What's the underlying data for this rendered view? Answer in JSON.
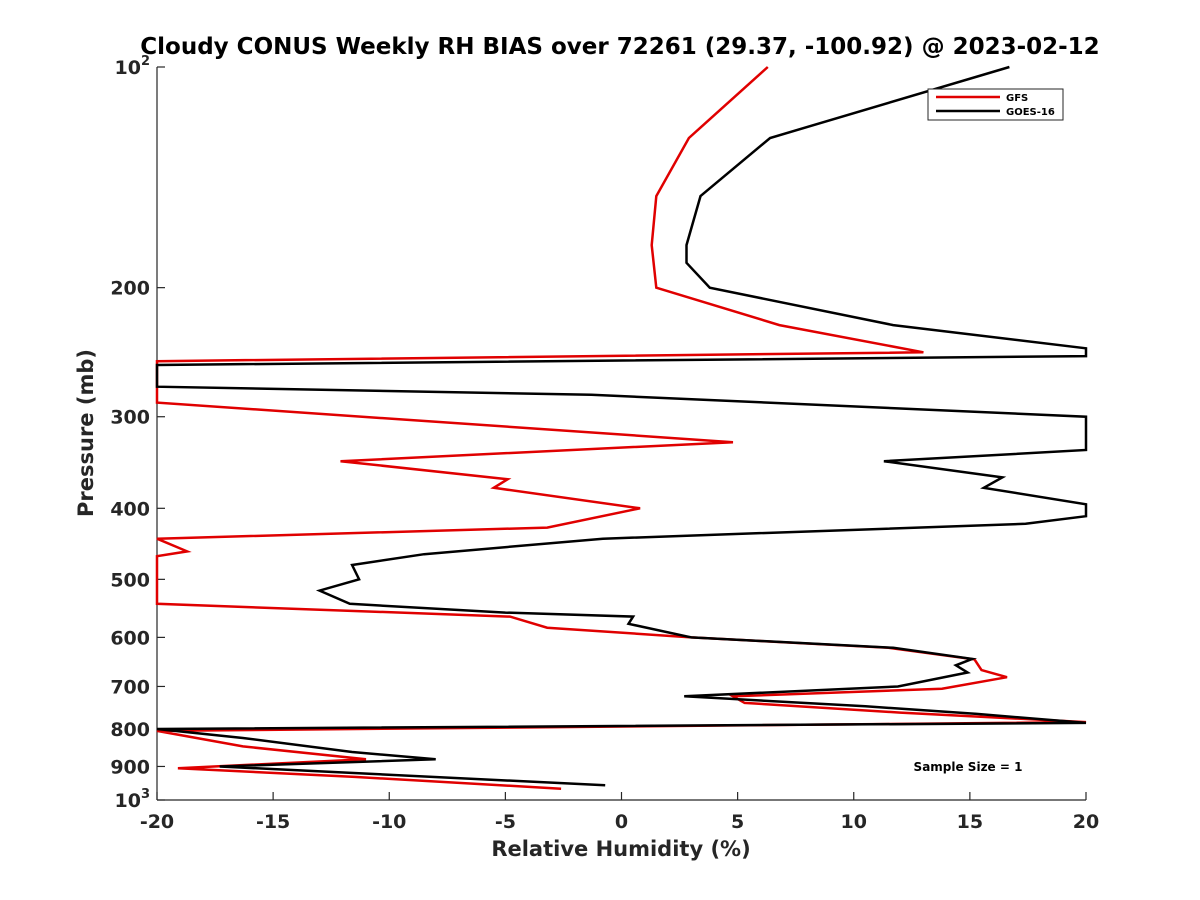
{
  "chart_data": {
    "type": "line",
    "title": "Cloudy CONUS Weekly RH BIAS over 72261 (29.37, -100.92) @ 2023-02-12",
    "xlabel": "Relative Humidity (%)",
    "ylabel": "Pressure (mb)",
    "xlim": [
      -20,
      20
    ],
    "ylim": [
      100,
      1000
    ],
    "y_scale": "log",
    "y_reversed": true,
    "x_ticks": [
      "-20",
      "-15",
      "-10",
      "-5",
      "0",
      "5",
      "10",
      "15",
      "20"
    ],
    "x_tick_values": [
      -20,
      -15,
      -10,
      -5,
      0,
      5,
      10,
      15,
      20
    ],
    "y_ticks": [
      {
        "value": 100,
        "base": "10",
        "exp": "2"
      },
      {
        "value": 200,
        "label": "200"
      },
      {
        "value": 300,
        "label": "300"
      },
      {
        "value": 400,
        "label": "400"
      },
      {
        "value": 500,
        "label": "500"
      },
      {
        "value": 600,
        "label": "600"
      },
      {
        "value": 700,
        "label": "700"
      },
      {
        "value": 800,
        "label": "800"
      },
      {
        "value": 900,
        "label": "900"
      },
      {
        "value": 1000,
        "base": "10",
        "exp": "3"
      }
    ],
    "grid": false,
    "legend_position": "top-right",
    "annotation": "Sample Size = 1",
    "series": [
      {
        "name": "GFS",
        "color": "#e00000",
        "points": [
          [
            6.3,
            100
          ],
          [
            2.9,
            125
          ],
          [
            1.5,
            150
          ],
          [
            1.3,
            175
          ],
          [
            1.5,
            200
          ],
          [
            6.8,
            225
          ],
          [
            13,
            245
          ],
          [
            -20,
            252
          ],
          [
            -20,
            287
          ],
          [
            4.8,
            325
          ],
          [
            -12.1,
            345
          ],
          [
            -4.9,
            365
          ],
          [
            -5.5,
            375
          ],
          [
            0.8,
            400
          ],
          [
            -3.2,
            425
          ],
          [
            -20,
            440
          ],
          [
            -18.7,
            458
          ],
          [
            -20,
            465
          ],
          [
            -20,
            540
          ],
          [
            -4.8,
            562
          ],
          [
            -3.2,
            582
          ],
          [
            3,
            600
          ],
          [
            11.5,
            620
          ],
          [
            15.2,
            643
          ],
          [
            15.5,
            665
          ],
          [
            16.6,
            680
          ],
          [
            13.8,
            705
          ],
          [
            4.8,
            722
          ],
          [
            5.3,
            737
          ],
          [
            12,
            760
          ],
          [
            20,
            783
          ],
          [
            -20,
            805
          ],
          [
            -16.3,
            845
          ],
          [
            -11,
            880
          ],
          [
            -19.1,
            905
          ],
          [
            -11.5,
            930
          ],
          [
            -2.6,
            965
          ]
        ]
      },
      {
        "name": "GOES-16",
        "color": "#000000",
        "points": [
          [
            16.7,
            100
          ],
          [
            6.4,
            125
          ],
          [
            3.4,
            150
          ],
          [
            2.8,
            175
          ],
          [
            2.8,
            185
          ],
          [
            3.8,
            200
          ],
          [
            11.7,
            225
          ],
          [
            20,
            242
          ],
          [
            20,
            248
          ],
          [
            -20,
            255
          ],
          [
            -20,
            273
          ],
          [
            -1.3,
            280
          ],
          [
            20,
            300
          ],
          [
            20,
            333
          ],
          [
            11.3,
            345
          ],
          [
            16.4,
            363
          ],
          [
            15.6,
            375
          ],
          [
            20,
            395
          ],
          [
            20,
            410
          ],
          [
            17.4,
            420
          ],
          [
            -0.8,
            440
          ],
          [
            -8.5,
            462
          ],
          [
            -11.6,
            478
          ],
          [
            -11.3,
            500
          ],
          [
            -13,
            518
          ],
          [
            -11.7,
            540
          ],
          [
            -5,
            555
          ],
          [
            0.5,
            562
          ],
          [
            0.3,
            575
          ],
          [
            3,
            600
          ],
          [
            11.7,
            620
          ],
          [
            15.1,
            642
          ],
          [
            14.4,
            655
          ],
          [
            14.9,
            670
          ],
          [
            11.9,
            700
          ],
          [
            2.7,
            722
          ],
          [
            10.5,
            745
          ],
          [
            15.3,
            763
          ],
          [
            20,
            785
          ],
          [
            -20,
            800
          ],
          [
            -16.3,
            823
          ],
          [
            -11.6,
            860
          ],
          [
            -8,
            880
          ],
          [
            -17.3,
            900
          ],
          [
            -0.7,
            955
          ]
        ]
      }
    ]
  }
}
